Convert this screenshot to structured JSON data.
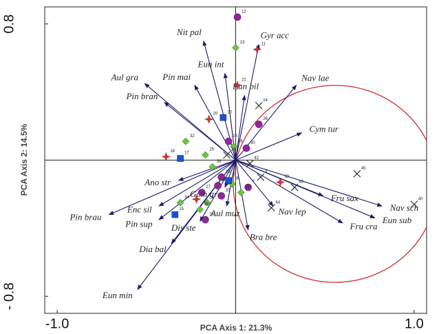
{
  "chart_data": {
    "type": "scatter",
    "xlabel": "PCA Axis 1: 21.3%",
    "ylabel": "PCA Axis 2: 14.5%",
    "xlim": [
      -1.07,
      1.07
    ],
    "ylim": [
      -0.9,
      0.9
    ],
    "xticks": [
      {
        "value": -1,
        "label": "-1.0"
      },
      {
        "value": 1,
        "label": "1.0"
      }
    ],
    "yticks": [
      {
        "value": -0.8,
        "label": "- 0.8"
      },
      {
        "value": 0.8,
        "label": "0.8"
      }
    ],
    "vectors": {
      "color": "#1a1a6e",
      "labels": [
        "Nit pal",
        "Gyr acc",
        "Eun int",
        "Aul gra",
        "Pin mai",
        "Pin bran",
        "Eun bil",
        "Nav lae",
        "Cym tur",
        "Nav sch",
        "Eun sub",
        "Fru cra",
        "Fru sax",
        "Nav lep",
        "Bra bre",
        "Aul muz",
        "Gom gra",
        "Ano str",
        "Enc sil",
        "Pin brau",
        "Pin sup",
        "Dis ste",
        "Dia bal",
        "Eun min"
      ],
      "x": [
        -0.18,
        0.13,
        -0.06,
        -0.51,
        -0.23,
        -0.4,
        0.05,
        0.34,
        0.37,
        0.82,
        0.78,
        0.6,
        0.49,
        0.21,
        0.07,
        -0.05,
        -0.06,
        -0.32,
        -0.43,
        -0.71,
        -0.43,
        -0.2,
        -0.36,
        -0.55
      ],
      "y": [
        0.7,
        0.68,
        0.51,
        0.45,
        0.44,
        0.34,
        0.38,
        0.44,
        0.16,
        -0.27,
        -0.34,
        -0.37,
        -0.21,
        -0.27,
        -0.41,
        -0.27,
        -0.16,
        -0.12,
        -0.27,
        -0.32,
        -0.35,
        -0.36,
        -0.49,
        -0.76
      ]
    },
    "series": [
      {
        "marker": "circle",
        "color": "#9b1fa5",
        "labels": [
          "12",
          "26",
          "28",
          "30",
          "7",
          "19",
          "29",
          "27",
          "33",
          "31"
        ],
        "x": [
          0.01,
          0.13,
          -0.04,
          0.06,
          0.07,
          -0.08,
          -0.1,
          -0.19,
          -0.08,
          -0.17
        ],
        "y": [
          0.84,
          0.21,
          0.11,
          0.07,
          -0.16,
          -0.1,
          -0.15,
          -0.19,
          -0.21,
          -0.35
        ]
      },
      {
        "marker": "diamond",
        "color": "#66cc33",
        "labels": [
          "13",
          "32",
          "25",
          "36",
          "41",
          "8",
          "38",
          "34",
          "6",
          "35"
        ],
        "x": [
          0.0,
          -0.28,
          -0.17,
          -0.01,
          0.03,
          -0.02,
          -0.13,
          -0.31,
          -0.16,
          -0.2
        ],
        "y": [
          0.66,
          0.11,
          0.03,
          0.08,
          -0.19,
          -0.14,
          -0.04,
          -0.25,
          -0.25,
          -0.29
        ]
      },
      {
        "marker": "square",
        "color": "#1f4fd8",
        "labels": [
          "10",
          "17",
          "2",
          "15"
        ],
        "x": [
          -0.07,
          -0.31,
          -0.04,
          -0.34
        ],
        "y": [
          0.25,
          0.01,
          -0.12,
          -0.32
        ]
      },
      {
        "marker": "star",
        "color": "#e03030",
        "labels": [
          "11",
          "21",
          "20",
          "18",
          "39",
          "22"
        ],
        "x": [
          0.12,
          0.01,
          -0.15,
          -0.39,
          0.25,
          -0.22
        ],
        "y": [
          0.65,
          0.44,
          0.24,
          0.02,
          -0.13,
          -0.23
        ]
      },
      {
        "marker": "cross",
        "color": "#222222",
        "labels": [
          "14",
          "24",
          "42",
          "45",
          "40",
          "43",
          "3",
          "44"
        ],
        "x": [
          0.13,
          -0.05,
          0.08,
          0.68,
          1.0,
          0.33,
          0.14,
          0.2
        ],
        "y": [
          0.32,
          0.03,
          -0.02,
          -0.08,
          -0.26,
          -0.16,
          -0.1,
          -0.28
        ]
      }
    ]
  }
}
